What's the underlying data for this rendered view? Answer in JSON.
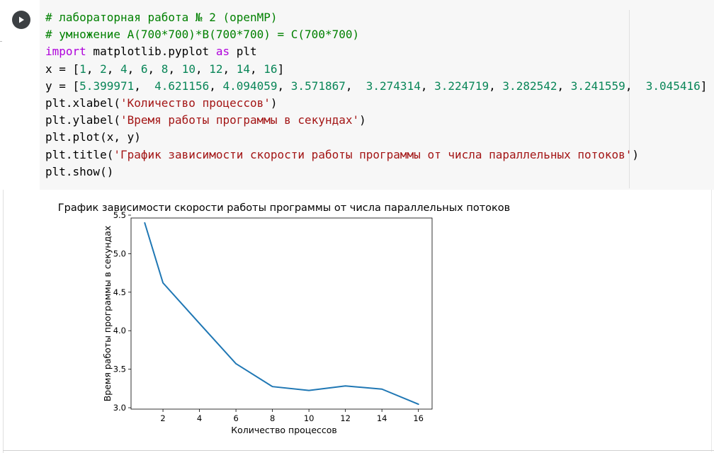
{
  "cell": {
    "run_icon": "play-icon",
    "code_lines": [
      [
        {
          "t": "comment",
          "s": "# лабораторная работа № 2 (openMP)"
        }
      ],
      [
        {
          "t": "comment",
          "s": "# умножение A(700*700)*B(700*700) = C(700*700)"
        }
      ],
      [
        {
          "t": "kw",
          "s": "import"
        },
        {
          "t": "plain",
          "s": " matplotlib.pyplot "
        },
        {
          "t": "kw",
          "s": "as"
        },
        {
          "t": "plain",
          "s": " plt"
        }
      ],
      [
        {
          "t": "plain",
          "s": "x = ["
        },
        {
          "t": "num",
          "s": "1"
        },
        {
          "t": "plain",
          "s": ", "
        },
        {
          "t": "num",
          "s": "2"
        },
        {
          "t": "plain",
          "s": ", "
        },
        {
          "t": "num",
          "s": "4"
        },
        {
          "t": "plain",
          "s": ", "
        },
        {
          "t": "num",
          "s": "6"
        },
        {
          "t": "plain",
          "s": ", "
        },
        {
          "t": "num",
          "s": "8"
        },
        {
          "t": "plain",
          "s": ", "
        },
        {
          "t": "num",
          "s": "10"
        },
        {
          "t": "plain",
          "s": ", "
        },
        {
          "t": "num",
          "s": "12"
        },
        {
          "t": "plain",
          "s": ", "
        },
        {
          "t": "num",
          "s": "14"
        },
        {
          "t": "plain",
          "s": ", "
        },
        {
          "t": "num",
          "s": "16"
        },
        {
          "t": "plain",
          "s": "]"
        }
      ],
      [
        {
          "t": "plain",
          "s": "y = ["
        },
        {
          "t": "num",
          "s": "5.399971"
        },
        {
          "t": "plain",
          "s": ",  "
        },
        {
          "t": "num",
          "s": "4.621156"
        },
        {
          "t": "plain",
          "s": ", "
        },
        {
          "t": "num",
          "s": "4.094059"
        },
        {
          "t": "plain",
          "s": ", "
        },
        {
          "t": "num",
          "s": "3.571867"
        },
        {
          "t": "plain",
          "s": ",  "
        },
        {
          "t": "num",
          "s": "3.274314"
        },
        {
          "t": "plain",
          "s": ", "
        },
        {
          "t": "num",
          "s": "3.224719"
        },
        {
          "t": "plain",
          "s": ", "
        },
        {
          "t": "num",
          "s": "3.282542"
        },
        {
          "t": "plain",
          "s": ", "
        },
        {
          "t": "num",
          "s": "3.241559"
        },
        {
          "t": "plain",
          "s": ",  "
        },
        {
          "t": "num",
          "s": "3.045416"
        },
        {
          "t": "plain",
          "s": "]"
        }
      ],
      [
        {
          "t": "plain",
          "s": "plt.xlabel("
        },
        {
          "t": "str",
          "s": "'Количество процессов'"
        },
        {
          "t": "plain",
          "s": ")"
        }
      ],
      [
        {
          "t": "plain",
          "s": "plt.ylabel("
        },
        {
          "t": "str",
          "s": "'Время работы программы в секундах'"
        },
        {
          "t": "plain",
          "s": ")"
        }
      ],
      [
        {
          "t": "plain",
          "s": "plt.plot(x, y)"
        }
      ],
      [
        {
          "t": "plain",
          "s": "plt.title("
        },
        {
          "t": "str",
          "s": "'График зависимости скорости работы программы от числа параллельных потоков'"
        },
        {
          "t": "plain",
          "s": ")"
        }
      ],
      [
        {
          "t": "plain",
          "s": "plt.show()"
        }
      ]
    ]
  },
  "colors": {
    "comment": "#008000",
    "keyword": "#af00db",
    "number": "#098658",
    "string": "#a31515",
    "line": "#1f77b4"
  },
  "chart_data": {
    "type": "line",
    "title": "График зависимости скорости работы программы от числа параллельных потоков",
    "xlabel": "Количество процессов",
    "ylabel": "Время работы программы в секундах",
    "x": [
      1,
      2,
      4,
      6,
      8,
      10,
      12,
      14,
      16
    ],
    "y": [
      5.399971,
      4.621156,
      4.094059,
      3.571867,
      3.274314,
      3.224719,
      3.282542,
      3.241559,
      3.045416
    ],
    "xticks": [
      2,
      4,
      6,
      8,
      10,
      12,
      14,
      16
    ],
    "xtick_labels": [
      "2",
      "4",
      "6",
      "8",
      "10",
      "12",
      "14",
      "16"
    ],
    "yticks": [
      3.0,
      3.5,
      4.0,
      4.5,
      5.0,
      5.5
    ],
    "ytick_labels": [
      "3.0",
      "3.5",
      "4.0",
      "4.5",
      "5.0",
      "5.5"
    ],
    "xlim": [
      0.25,
      16.75
    ],
    "ylim": [
      2.982,
      5.463
    ],
    "grid": false,
    "legend": "none"
  }
}
